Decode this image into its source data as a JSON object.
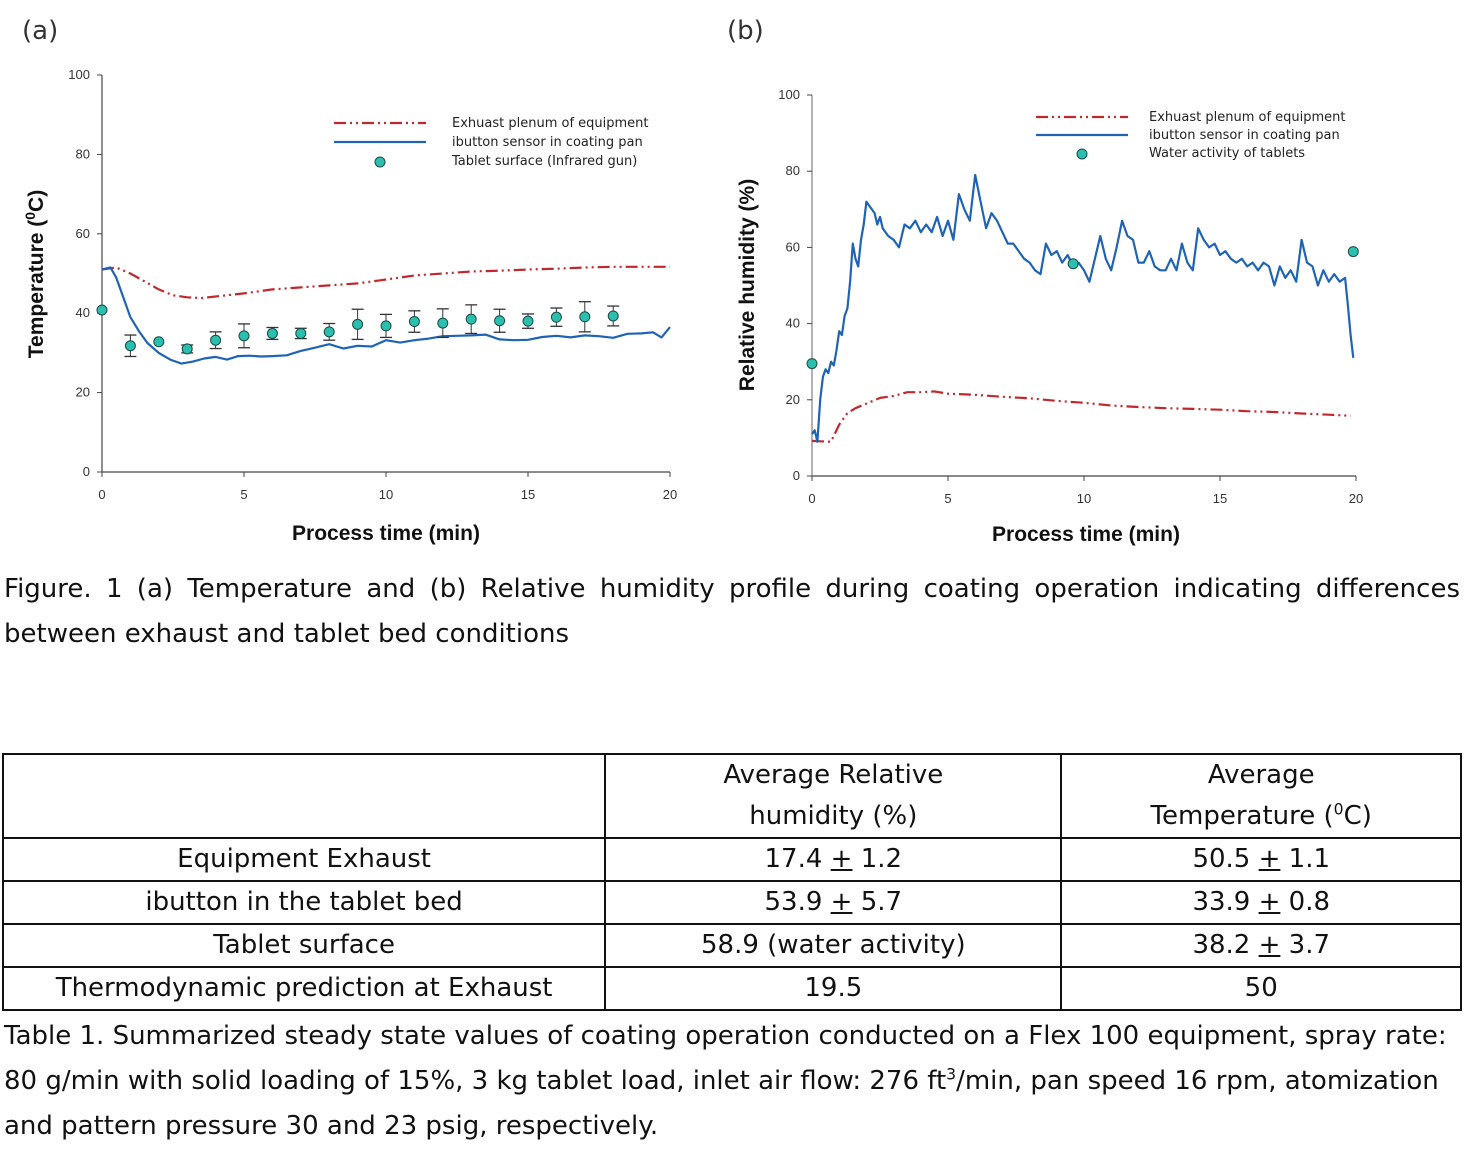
{
  "panels": {
    "a_label": "(a)",
    "b_label": "(b)"
  },
  "chart_data": [
    {
      "id": "a",
      "type": "line",
      "title": "",
      "xlabel": "Process time (min)",
      "ylabel": "Temperature (0C)",
      "ylabel_main": "Temperature (",
      "ylabel_sup": "0",
      "ylabel_end": "C)",
      "xlim": [
        0,
        20
      ],
      "ylim": [
        0,
        100
      ],
      "xticks": [
        0,
        5,
        10,
        15,
        20
      ],
      "yticks": [
        0,
        20,
        40,
        60,
        80,
        100
      ],
      "grid": false,
      "legend_position": "top-right",
      "legend": [
        "Exhuast plenum of equipment",
        "ibutton sensor in coating pan",
        "Tablet surface (Infrared gun)"
      ],
      "series": [
        {
          "name": "Exhuast plenum of equipment",
          "style": "dash-dot-dot",
          "color": "#c0282d",
          "x": [
            0,
            0.5,
            1,
            1.5,
            2,
            2.5,
            3,
            3.5,
            4,
            5,
            6,
            7,
            8,
            9,
            10,
            11,
            12,
            13,
            14,
            15,
            16,
            17,
            18,
            19,
            20
          ],
          "y": [
            51,
            51.5,
            50,
            48,
            46,
            44.5,
            44,
            43.8,
            44.2,
            45,
            46,
            46.5,
            47,
            47.5,
            48.5,
            49.5,
            50,
            50.5,
            50.7,
            51,
            51.2,
            51.5,
            51.7,
            51.7,
            51.7
          ]
        },
        {
          "name": "ibutton sensor in coating pan",
          "style": "solid",
          "color": "#1f63b4",
          "x": [
            0,
            0.3,
            0.5,
            0.8,
            1,
            1.3,
            1.6,
            2,
            2.4,
            2.8,
            3.2,
            3.6,
            4,
            4.4,
            4.8,
            5.2,
            5.6,
            6,
            6.5,
            7,
            7.5,
            8,
            8.5,
            9,
            9.5,
            10,
            10.5,
            11,
            11.5,
            12,
            12.5,
            13,
            13.5,
            14,
            14.5,
            15,
            15.5,
            16,
            16.5,
            17,
            17.5,
            18,
            18.5,
            19,
            19.4,
            19.7,
            20
          ],
          "y": [
            51,
            51.5,
            49,
            43,
            39,
            35.5,
            32.5,
            30,
            28.3,
            27.3,
            27.8,
            28.6,
            29,
            28.3,
            29.2,
            29.3,
            29.1,
            29.2,
            29.4,
            30.5,
            31.3,
            32.2,
            31.1,
            31.8,
            31.6,
            33.2,
            32.6,
            33.2,
            33.6,
            34.2,
            34.3,
            34.4,
            34.6,
            33.4,
            33.2,
            33.3,
            34.0,
            34.3,
            33.9,
            34.4,
            34.2,
            33.8,
            34.8,
            34.9,
            35.2,
            33.9,
            36.5
          ]
        },
        {
          "name": "Tablet surface (Infrared gun)",
          "style": "marker",
          "color": "#2bbfb0",
          "x": [
            0,
            1,
            2,
            3,
            4,
            5,
            6,
            7,
            8,
            9,
            10,
            11,
            12,
            13,
            14,
            15,
            16,
            17,
            18
          ],
          "y": [
            40.8,
            31.8,
            32.8,
            31.0,
            33.2,
            34.3,
            34.9,
            34.9,
            35.3,
            37.2,
            36.8,
            37.9,
            37.5,
            38.5,
            38.1,
            38.0,
            39.0,
            39.1,
            39.3
          ],
          "err": [
            0,
            2.7,
            0,
            1.0,
            2.1,
            3.0,
            1.5,
            1.3,
            2.1,
            3.8,
            2.9,
            2.7,
            3.6,
            3.6,
            2.9,
            1.8,
            2.3,
            3.8,
            2.5
          ]
        }
      ]
    },
    {
      "id": "b",
      "type": "line",
      "title": "",
      "xlabel": "Process time (min)",
      "ylabel": "Relative humidity (%)",
      "xlim": [
        0,
        20
      ],
      "ylim": [
        0,
        100
      ],
      "xticks": [
        0,
        5,
        10,
        15,
        20
      ],
      "yticks": [
        0,
        20,
        40,
        60,
        80,
        100
      ],
      "grid": false,
      "legend_position": "top-right",
      "legend": [
        "Exhuast plenum of equipment",
        "ibutton sensor in coating pan",
        "Water activity of tablets"
      ],
      "series": [
        {
          "name": "Exhuast plenum of equipment",
          "style": "dash-dot-dot",
          "color": "#c0282d",
          "x": [
            0,
            0.3,
            0.7,
            1,
            1.3,
            1.6,
            2,
            2.5,
            3,
            3.5,
            4,
            4.5,
            5,
            6,
            7,
            8,
            9,
            10,
            11,
            12,
            13,
            14,
            15,
            16,
            17,
            18,
            19,
            19.8
          ],
          "y": [
            9.2,
            9.1,
            9.0,
            13.5,
            16.5,
            17.8,
            19.0,
            20.5,
            21.0,
            22.0,
            22.0,
            22.2,
            21.6,
            21.3,
            20.8,
            20.4,
            19.7,
            19.2,
            18.5,
            18.1,
            17.8,
            17.6,
            17.4,
            17.0,
            16.8,
            16.4,
            16.1,
            15.8
          ]
        },
        {
          "name": "ibutton sensor in coating pan",
          "style": "solid",
          "color": "#1f63b4",
          "x": [
            0,
            0.1,
            0.2,
            0.3,
            0.4,
            0.5,
            0.6,
            0.7,
            0.8,
            0.9,
            1.0,
            1.1,
            1.2,
            1.3,
            1.4,
            1.5,
            1.6,
            1.7,
            1.8,
            1.9,
            2.0,
            2.1,
            2.2,
            2.3,
            2.4,
            2.5,
            2.6,
            2.8,
            3.0,
            3.2,
            3.4,
            3.6,
            3.8,
            4.0,
            4.2,
            4.4,
            4.6,
            4.8,
            5.0,
            5.2,
            5.4,
            5.6,
            5.8,
            6.0,
            6.2,
            6.4,
            6.6,
            6.8,
            7.0,
            7.2,
            7.4,
            7.6,
            7.8,
            8.0,
            8.2,
            8.4,
            8.6,
            8.8,
            9.0,
            9.2,
            9.4,
            9.6,
            9.8,
            10.0,
            10.2,
            10.4,
            10.6,
            10.8,
            11.0,
            11.2,
            11.4,
            11.6,
            11.8,
            12.0,
            12.2,
            12.4,
            12.6,
            12.8,
            13.0,
            13.2,
            13.4,
            13.6,
            13.8,
            14.0,
            14.2,
            14.4,
            14.6,
            14.8,
            15.0,
            15.2,
            15.4,
            15.6,
            15.8,
            16.0,
            16.2,
            16.4,
            16.6,
            16.8,
            17.0,
            17.2,
            17.4,
            17.6,
            17.8,
            18.0,
            18.2,
            18.4,
            18.6,
            18.8,
            19.0,
            19.2,
            19.4,
            19.6,
            19.7,
            19.8,
            19.9
          ],
          "y": [
            11,
            12,
            9,
            20,
            26,
            28,
            27,
            30,
            29,
            33,
            38,
            37,
            42,
            44,
            51,
            61,
            57,
            55,
            62,
            66,
            72,
            71,
            70,
            69,
            66,
            68,
            65,
            63,
            62,
            60,
            66,
            65,
            67,
            64,
            66,
            64,
            68,
            63,
            67,
            62,
            74,
            70,
            67,
            79,
            72,
            65,
            69,
            67,
            64,
            61,
            61,
            59,
            57,
            56,
            54,
            53,
            61,
            58,
            59,
            56,
            58,
            55,
            56,
            54,
            51,
            57,
            63,
            57,
            54,
            60,
            67,
            63,
            62,
            56,
            56,
            59,
            55,
            54,
            54,
            57,
            54,
            61,
            56,
            54,
            65,
            62,
            60,
            61,
            58,
            59,
            57,
            56,
            57,
            55,
            56,
            54,
            56,
            55,
            50,
            55,
            52,
            54,
            51,
            62,
            56,
            55,
            50,
            54,
            51,
            53,
            51,
            52,
            45,
            37,
            31
          ],
          "note": "noisy trace; values approximate"
        },
        {
          "name": "Water activity of tablets",
          "style": "marker",
          "color": "#2bbfb0",
          "x": [
            0,
            9.6,
            19.9
          ],
          "y": [
            29.5,
            55.7,
            58.9
          ]
        }
      ]
    }
  ],
  "figure_caption": "Figure. 1 (a) Temperature and (b) Relative humidity profile during coating operation indicating differences between exhaust and tablet bed conditions",
  "table": {
    "headers": [
      "",
      "Average Relative humidity (%)",
      "Average Temperature (0C)"
    ],
    "header_rh_line1": "Average Relative",
    "header_rh_line2": "humidity (%)",
    "header_temp_line1": "Average",
    "header_temp_line2_pre": "Temperature (",
    "header_temp_line2_sup": "0",
    "header_temp_line2_post": "C)",
    "rows": [
      {
        "label": "Equipment Exhaust",
        "rh_mean": "17.4",
        "rh_pm": "+",
        "rh_sd": "1.2",
        "temp_mean": "50.5",
        "temp_pm": "+",
        "temp_sd": "1.1"
      },
      {
        "label": "ibutton in the tablet bed",
        "rh_mean": "53.9",
        "rh_pm": "+",
        "rh_sd": "5.7",
        "temp_mean": "33.9",
        "temp_pm": "+",
        "temp_sd": "0.8"
      },
      {
        "label": "Tablet surface",
        "rh_text": "58.9 (water activity)",
        "temp_mean": "38.2",
        "temp_pm": "+",
        "temp_sd": "3.7"
      },
      {
        "label": "Thermodynamic prediction at Exhaust",
        "rh_text": "19.5",
        "temp_text": "50"
      }
    ]
  },
  "table_caption_pre": "Table 1. Summarized steady state values of coating operation conducted on a Flex 100 equipment, spray rate: 80 g/min with solid loading of 15%, 3 kg tablet load, inlet air flow: 276 ft",
  "table_caption_sup": "3",
  "table_caption_post": "/min, pan speed 16 rpm, atomization and pattern pressure 30 and 23 psig, respectively."
}
